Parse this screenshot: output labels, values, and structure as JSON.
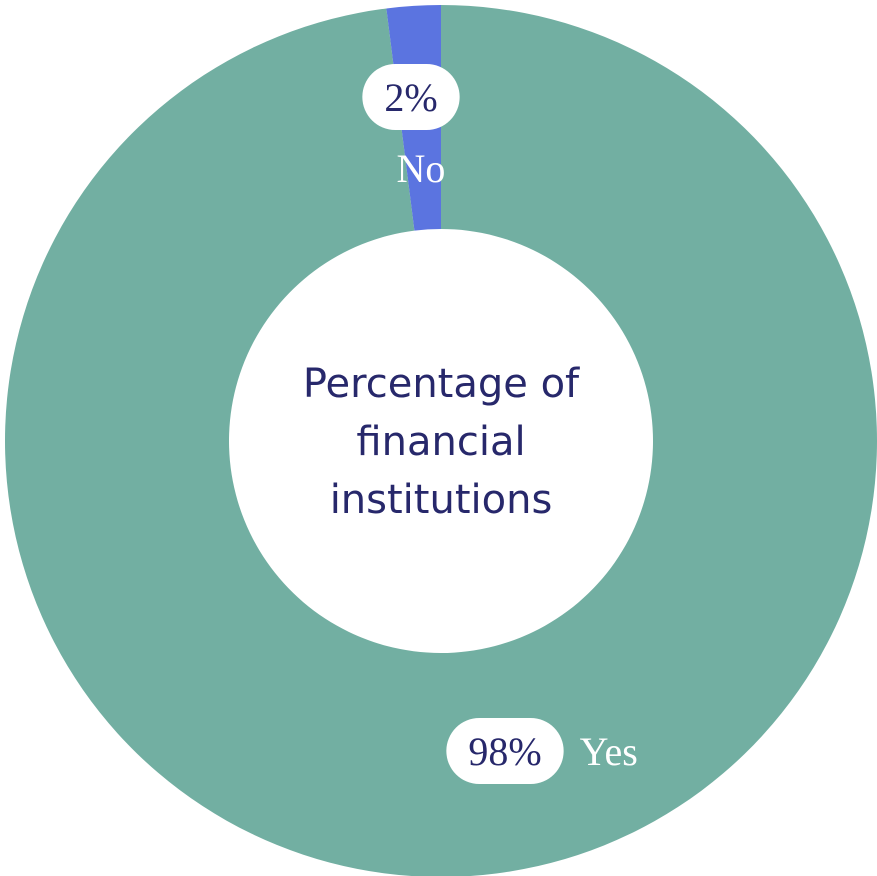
{
  "chart_data": {
    "type": "pie",
    "donut": true,
    "title": "Percentage of financial institutions",
    "categories": [
      "Yes",
      "No"
    ],
    "values": [
      98,
      2
    ],
    "value_labels": [
      "98%",
      "2%"
    ],
    "colors": [
      "#72afa2",
      "#5b74e0"
    ]
  }
}
